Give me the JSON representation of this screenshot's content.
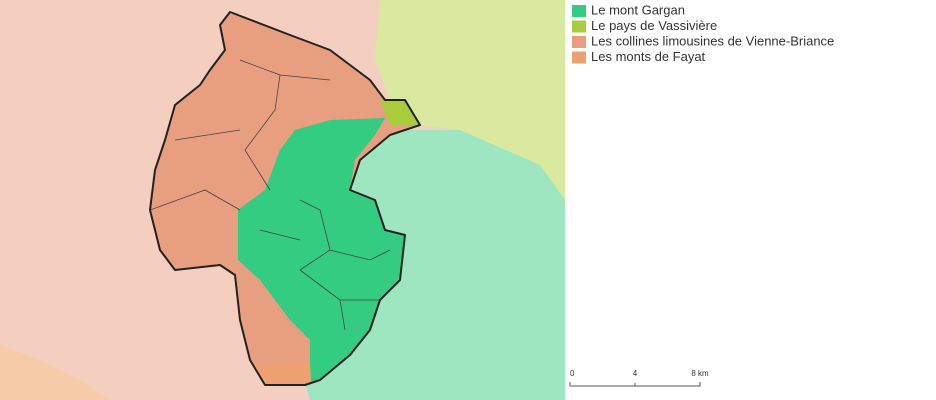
{
  "legend": [
    {
      "label": "Le mont Gargan",
      "color": "#33cc80"
    },
    {
      "label": "Le pays de Vassivière",
      "color": "#a8cc3c"
    },
    {
      "label": "Les collines limousines de Vienne-Briance",
      "color": "#e89f80"
    },
    {
      "label": "Les monts de Fayat",
      "color": "#eda070"
    }
  ],
  "scale": {
    "labels": [
      "0",
      "4",
      "8 km"
    ]
  }
}
